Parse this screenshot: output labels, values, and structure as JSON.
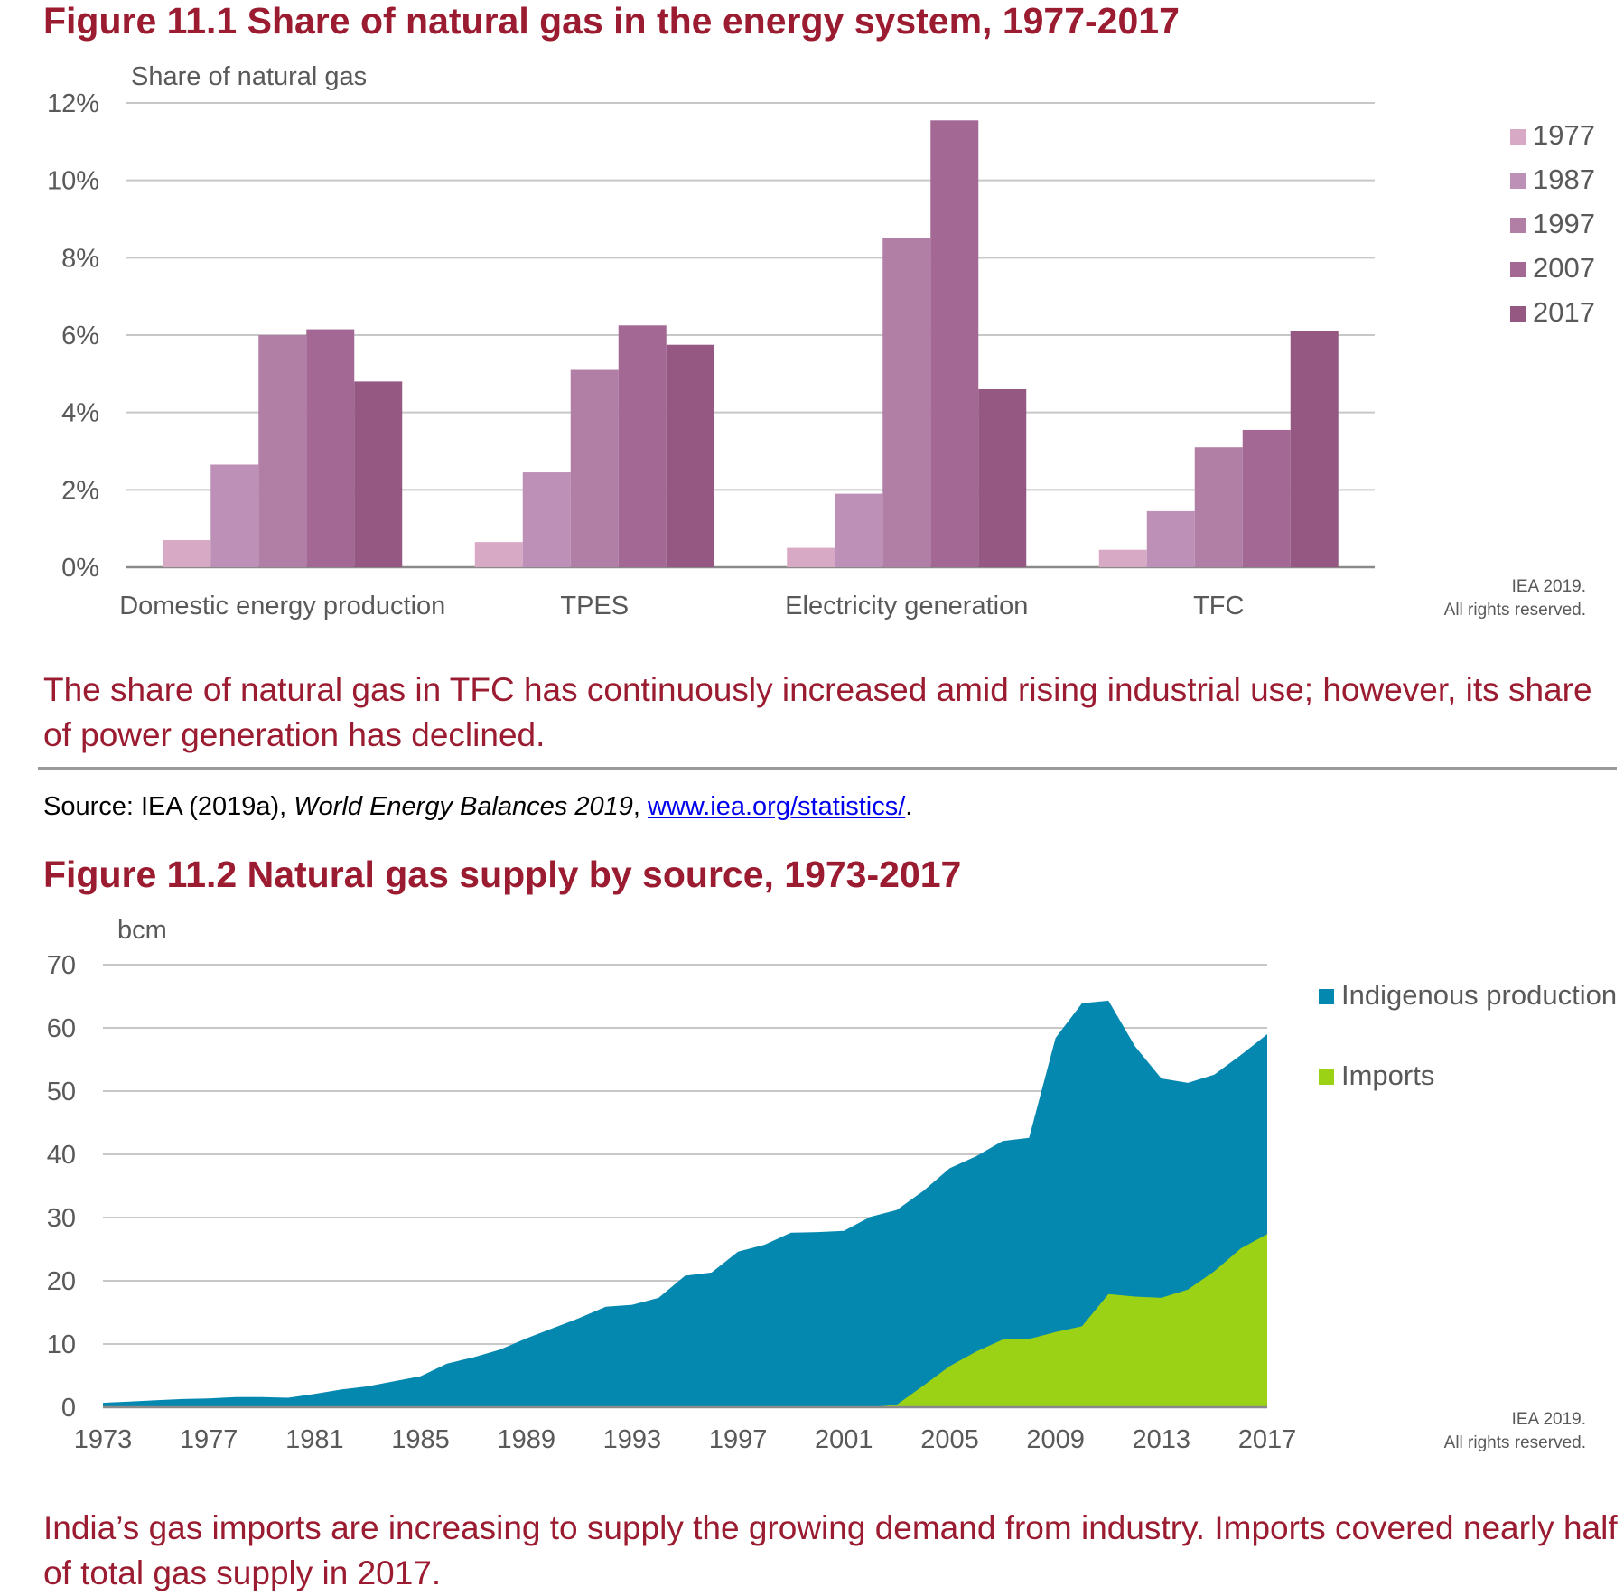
{
  "figure1": {
    "title": "Figure 11.1  Share of natural gas in the energy system, 1977-2017",
    "caption": "The share of natural gas in TFC has continuously increased amid rising industrial use; however, its share of power generation has declined.",
    "credit_line1": "IEA 2019.",
    "credit_line2": "All rights reserved."
  },
  "source": {
    "prefix": "Source: IEA (2019a), ",
    "italic": "World Energy Balances 2019",
    "sep": ", ",
    "link": "www.iea.org/statistics/",
    "suffix": "."
  },
  "figure2": {
    "title": "Figure 11.2 Natural gas supply by source, 1973-2017",
    "caption": "India’s gas imports are increasing to supply the growing demand from industry. Imports covered nearly half of total gas supply in 2017.",
    "credit_line1": "IEA 2019.",
    "credit_line2": "All rights reserved."
  },
  "chart_data": [
    {
      "type": "bar",
      "title": "Figure 11.1  Share of natural gas in the energy system, 1977-2017",
      "ylabel": "Share of natural gas",
      "xlabel": "",
      "ylim": [
        0,
        12
      ],
      "yticks": [
        "0%",
        "2%",
        "4%",
        "6%",
        "8%",
        "10%",
        "12%"
      ],
      "grid": true,
      "legend": "right",
      "categories": [
        "Domestic energy production",
        "TPES",
        "Electricity generation",
        "TFC"
      ],
      "series": [
        {
          "name": "1977",
          "color": "#d7a9c4",
          "values": [
            0.7,
            0.65,
            0.5,
            0.45
          ]
        },
        {
          "name": "1987",
          "color": "#bc90b7",
          "values": [
            2.65,
            2.45,
            1.9,
            1.45
          ]
        },
        {
          "name": "1997",
          "color": "#b17ea6",
          "values": [
            6.0,
            5.1,
            8.5,
            3.1
          ]
        },
        {
          "name": "2007",
          "color": "#a46895",
          "values": [
            6.15,
            6.25,
            11.55,
            3.55
          ]
        },
        {
          "name": "2017",
          "color": "#955882",
          "values": [
            4.8,
            5.75,
            4.6,
            6.1
          ]
        }
      ]
    },
    {
      "type": "area",
      "title": "Figure 11.2 Natural gas supply by source, 1973-2017",
      "ylabel": "bcm",
      "xlabel": "",
      "ylim": [
        0,
        70
      ],
      "yticks": [
        "0",
        "10",
        "20",
        "30",
        "40",
        "50",
        "60",
        "70"
      ],
      "xticks": [
        "1973",
        "1977",
        "1981",
        "1985",
        "1989",
        "1993",
        "1997",
        "2001",
        "2005",
        "2009",
        "2013",
        "2017"
      ],
      "grid": true,
      "legend": "right",
      "stacked": false,
      "x": [
        1973,
        1974,
        1975,
        1976,
        1977,
        1978,
        1979,
        1980,
        1981,
        1982,
        1983,
        1984,
        1985,
        1986,
        1987,
        1988,
        1989,
        1990,
        1991,
        1992,
        1993,
        1994,
        1995,
        1996,
        1997,
        1998,
        1999,
        2000,
        2001,
        2002,
        2003,
        2004,
        2005,
        2006,
        2007,
        2008,
        2009,
        2010,
        2011,
        2012,
        2013,
        2014,
        2015,
        2016,
        2017
      ],
      "series": [
        {
          "name": "Indigenous production",
          "color": "#0588b0",
          "values": [
            0.7,
            0.9,
            1.1,
            1.3,
            1.4,
            1.6,
            1.6,
            1.5,
            2.1,
            2.8,
            3.3,
            4.1,
            4.9,
            6.9,
            7.9,
            9.1,
            10.9,
            12.5,
            14.1,
            15.9,
            16.2,
            17.3,
            20.8,
            21.3,
            24.6,
            25.7,
            27.6,
            27.7,
            27.9,
            30.1,
            31.2,
            34.2,
            37.8,
            39.7,
            42.1,
            42.6,
            58.4,
            63.9,
            64.3,
            57.1,
            52.0,
            51.3,
            52.6,
            55.7,
            59.0
          ]
        },
        {
          "name": "Imports",
          "color": "#9bd216",
          "values": [
            0,
            0,
            0,
            0,
            0,
            0,
            0,
            0,
            0,
            0,
            0,
            0,
            0,
            0,
            0,
            0,
            0,
            0,
            0,
            0,
            0,
            0,
            0,
            0,
            0,
            0,
            0,
            0,
            0,
            0,
            0.4,
            3.4,
            6.5,
            8.8,
            10.7,
            10.8,
            11.9,
            12.8,
            17.9,
            17.5,
            17.3,
            18.6,
            21.5,
            25.1,
            27.4
          ]
        }
      ]
    }
  ]
}
